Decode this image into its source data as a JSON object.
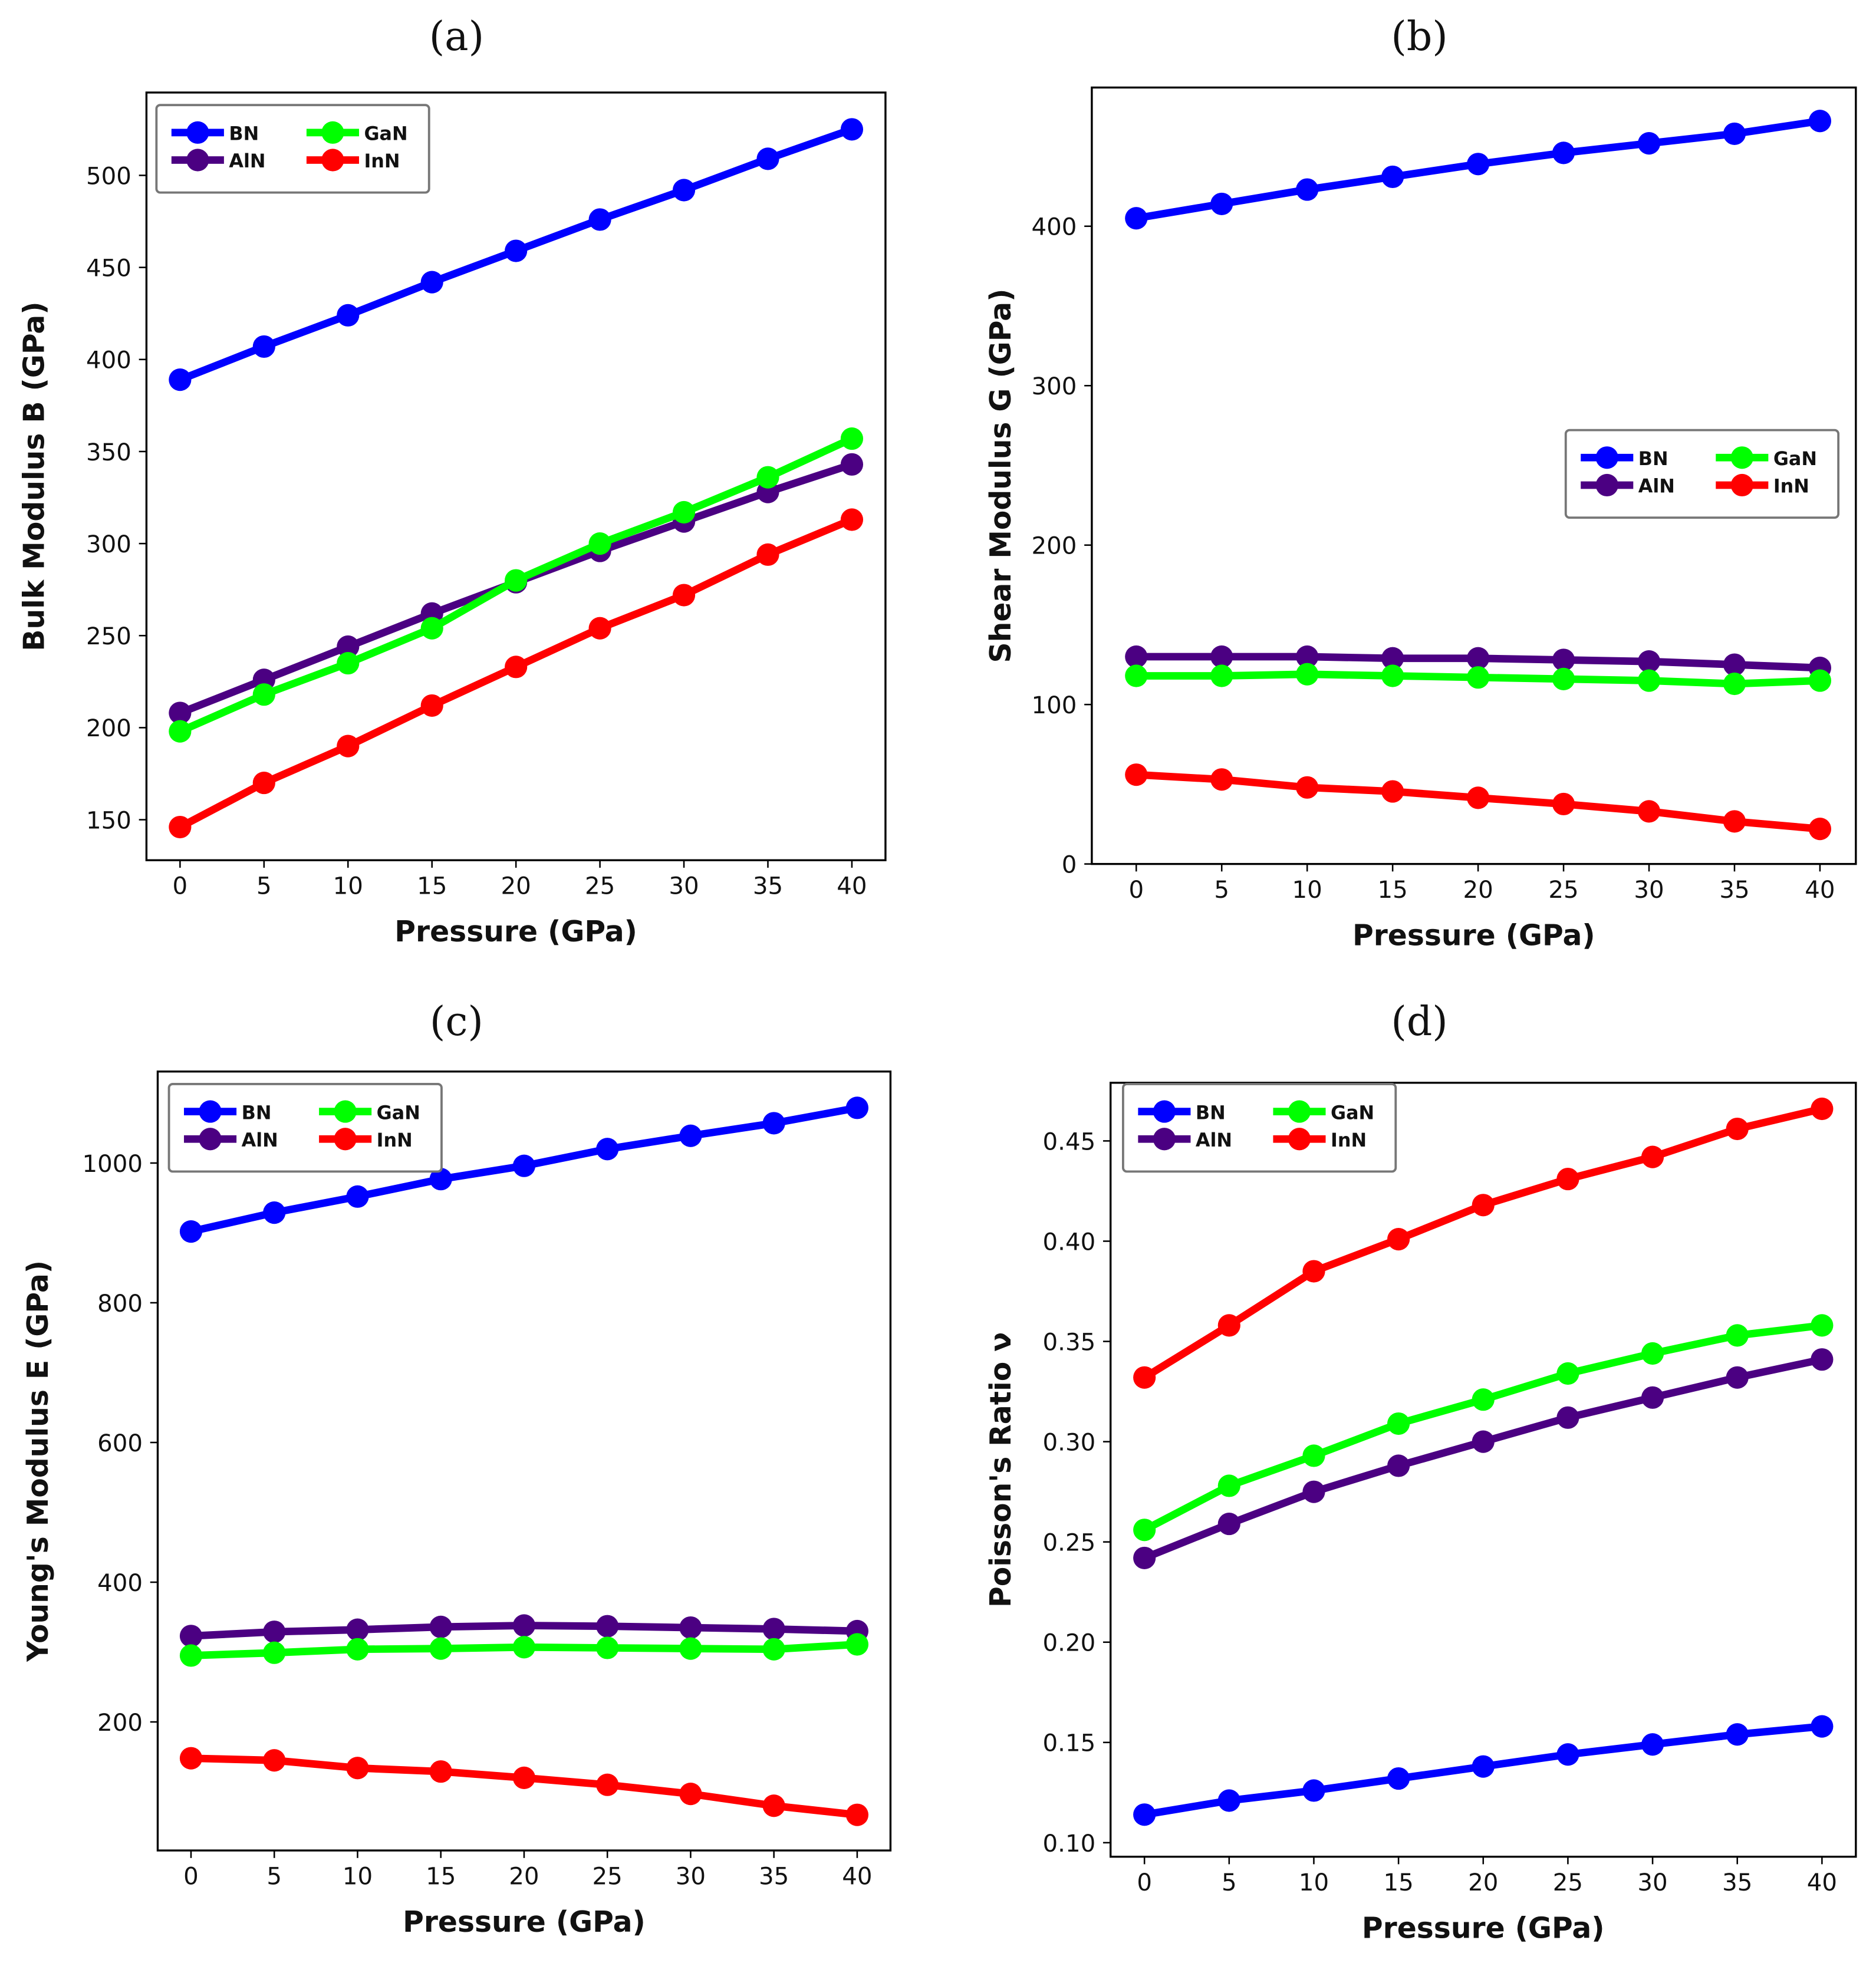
{
  "series_colors": {
    "BN": "#0000ff",
    "AlN": "#4b0082",
    "GaN": "#00ff00",
    "InN": "#ff0000"
  },
  "chart_data": [
    {
      "type": "line",
      "panel_label": "(a)",
      "xlabel": "Pressure (GPa)",
      "ylabel": "Bulk Modulus B (GPa)",
      "x": [
        0,
        5,
        10,
        15,
        20,
        25,
        30,
        35,
        40
      ],
      "xticks": [
        0,
        5,
        10,
        15,
        20,
        25,
        30,
        35,
        40
      ],
      "yticks": [
        150,
        200,
        250,
        300,
        350,
        400,
        450,
        500
      ],
      "xlim": [
        -2,
        42
      ],
      "ylim": [
        128,
        545
      ],
      "legend": "top-left",
      "series": [
        {
          "name": "BN",
          "values": [
            389,
            407,
            424,
            442,
            459,
            476,
            492,
            509,
            525
          ]
        },
        {
          "name": "AlN",
          "values": [
            208,
            226,
            244,
            262,
            279,
            296,
            312,
            328,
            343
          ]
        },
        {
          "name": "GaN",
          "values": [
            198,
            218,
            235,
            254,
            280,
            300,
            317,
            336,
            357
          ]
        },
        {
          "name": "InN",
          "values": [
            146,
            170,
            190,
            212,
            233,
            254,
            272,
            294,
            313
          ]
        }
      ]
    },
    {
      "type": "line",
      "panel_label": "(b)",
      "xlabel": "Pressure (GPa)",
      "ylabel": "Shear Modulus G (GPa)",
      "x": [
        0,
        5,
        10,
        15,
        20,
        25,
        30,
        35,
        40
      ],
      "xticks": [
        0,
        5,
        10,
        15,
        20,
        25,
        30,
        35,
        40
      ],
      "yticks": [
        0,
        100,
        200,
        300,
        400
      ],
      "xlim": [
        -2.6,
        42.1
      ],
      "ylim": [
        0,
        487
      ],
      "legend": "center-right",
      "series": [
        {
          "name": "BN",
          "values": [
            405,
            414,
            423,
            431,
            439,
            446,
            452,
            458,
            466
          ]
        },
        {
          "name": "AlN",
          "values": [
            130,
            130,
            130,
            129,
            129,
            128,
            127,
            125,
            123
          ]
        },
        {
          "name": "GaN",
          "values": [
            118,
            118,
            119,
            118,
            117,
            116,
            115,
            113,
            115
          ]
        },
        {
          "name": "InN",
          "values": [
            56,
            53,
            48,
            45.5,
            41.5,
            37.6,
            33,
            26.7,
            22
          ]
        }
      ]
    },
    {
      "type": "line",
      "panel_label": "(c)",
      "xlabel": "Pressure (GPa)",
      "ylabel": "Young's Modulus E (GPa)",
      "x": [
        0,
        5,
        10,
        15,
        20,
        25,
        30,
        35,
        40
      ],
      "xticks": [
        0,
        5,
        10,
        15,
        20,
        25,
        30,
        35,
        40
      ],
      "yticks": [
        200,
        400,
        600,
        800,
        1000
      ],
      "xlim": [
        -2,
        42
      ],
      "ylim": [
        16,
        1131
      ],
      "legend": "top-left",
      "series": [
        {
          "name": "BN",
          "values": [
            902,
            929,
            952,
            977,
            996,
            1020,
            1039,
            1057,
            1079
          ]
        },
        {
          "name": "AlN",
          "values": [
            323,
            329,
            332,
            336,
            338,
            337,
            335,
            333,
            330
          ]
        },
        {
          "name": "GaN",
          "values": [
            295,
            299,
            304,
            305,
            307,
            306,
            305,
            304,
            311
          ]
        },
        {
          "name": "InN",
          "values": [
            148,
            145,
            134,
            129,
            120,
            110,
            97,
            80,
            67
          ]
        }
      ]
    },
    {
      "type": "line",
      "panel_label": "(d)",
      "xlabel": "Pressure (GPa)",
      "ylabel": "Poisson's Ratio ν",
      "x": [
        0,
        5,
        10,
        15,
        20,
        25,
        30,
        35,
        40
      ],
      "xticks": [
        0,
        5,
        10,
        15,
        20,
        25,
        30,
        35,
        40
      ],
      "yticks": [
        "0.10",
        "0.15",
        "0.20",
        "0.25",
        "0.30",
        "0.35",
        "0.40",
        "0.45"
      ],
      "xlim": [
        -2,
        42
      ],
      "ylim": [
        0.093,
        0.479
      ],
      "legend": "top-left",
      "series": [
        {
          "name": "BN",
          "values": [
            0.114,
            0.121,
            0.126,
            0.132,
            0.138,
            0.144,
            0.149,
            0.154,
            0.158
          ]
        },
        {
          "name": "AlN",
          "values": [
            0.242,
            0.259,
            0.275,
            0.288,
            0.3,
            0.312,
            0.322,
            0.332,
            0.341
          ]
        },
        {
          "name": "GaN",
          "values": [
            0.256,
            0.278,
            0.293,
            0.309,
            0.321,
            0.334,
            0.344,
            0.353,
            0.358
          ]
        },
        {
          "name": "InN",
          "values": [
            0.332,
            0.358,
            0.385,
            0.401,
            0.418,
            0.431,
            0.442,
            0.456,
            0.466
          ]
        }
      ]
    }
  ]
}
